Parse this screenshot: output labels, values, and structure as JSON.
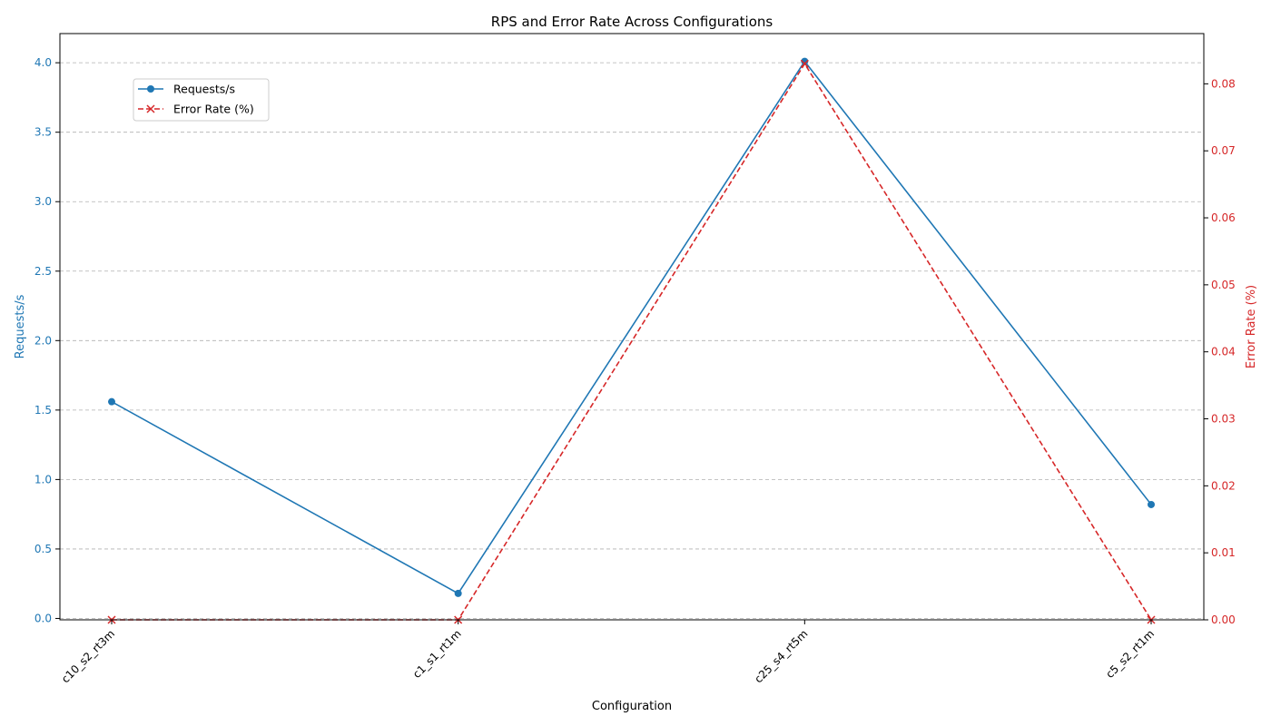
{
  "chart_data": {
    "type": "line",
    "title": "RPS and Error Rate Across Configurations",
    "xlabel": "Configuration",
    "ylabel_left": "Requests/s",
    "ylabel_right": "Error Rate (%)",
    "categories": [
      "c10_s2_rt3m",
      "c1_s1_rt1m",
      "c25_s4_rt5m",
      "c5_s2_rt1m"
    ],
    "series": [
      {
        "name": "Requests/s",
        "axis": "left",
        "color": "#1f77b4",
        "line_style": "solid",
        "marker": "circle",
        "values": [
          1.56,
          0.18,
          4.01,
          0.82
        ]
      },
      {
        "name": "Error Rate (%)",
        "axis": "right",
        "color": "#d62728",
        "line_style": "dashed",
        "marker": "x",
        "values": [
          0.0,
          0.0,
          0.083,
          0.0
        ]
      }
    ],
    "ylim_left": [
      -0.01,
      4.21
    ],
    "ylim_right": [
      0.0,
      0.0875
    ],
    "yticks_left": [
      "0.0",
      "0.5",
      "1.0",
      "1.5",
      "2.0",
      "2.5",
      "3.0",
      "3.5",
      "4.0"
    ],
    "yticks_right": [
      "0.00",
      "0.01",
      "0.02",
      "0.03",
      "0.04",
      "0.05",
      "0.06",
      "0.07",
      "0.08"
    ],
    "grid": "horizontal-dashed",
    "legend_position": "upper-left"
  }
}
